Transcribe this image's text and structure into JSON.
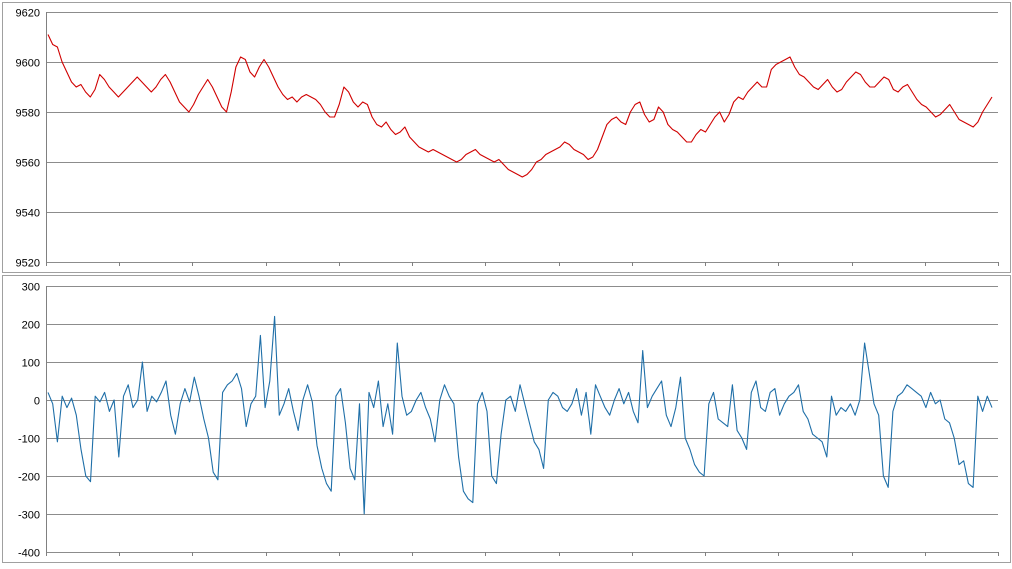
{
  "chart_data": [
    {
      "type": "line",
      "ylim": [
        9520,
        9620
      ],
      "yticks": [
        9520,
        9540,
        9560,
        9580,
        9600,
        9620
      ],
      "x_points": 200,
      "grid": true,
      "series": [
        {
          "color": "#d00000",
          "values": [
            9611,
            9607,
            9606,
            9600,
            9596,
            9592,
            9590,
            9591,
            9588,
            9586,
            9589,
            9595,
            9593,
            9590,
            9588,
            9586,
            9588,
            9590,
            9592,
            9594,
            9592,
            9590,
            9588,
            9590,
            9593,
            9595,
            9592,
            9588,
            9584,
            9582,
            9580,
            9583,
            9587,
            9590,
            9593,
            9590,
            9586,
            9582,
            9580,
            9588,
            9598,
            9602,
            9601,
            9596,
            9594,
            9598,
            9601,
            9598,
            9594,
            9590,
            9587,
            9585,
            9586,
            9584,
            9586,
            9587,
            9586,
            9585,
            9583,
            9580,
            9578,
            9578,
            9583,
            9590,
            9588,
            9584,
            9582,
            9584,
            9583,
            9578,
            9575,
            9574,
            9576,
            9573,
            9571,
            9572,
            9574,
            9570,
            9568,
            9566,
            9565,
            9564,
            9565,
            9564,
            9563,
            9562,
            9561,
            9560,
            9561,
            9563,
            9564,
            9565,
            9563,
            9562,
            9561,
            9560,
            9561,
            9559,
            9557,
            9556,
            9555,
            9554,
            9555,
            9557,
            9560,
            9561,
            9563,
            9564,
            9565,
            9566,
            9568,
            9567,
            9565,
            9564,
            9563,
            9561,
            9562,
            9565,
            9570,
            9575,
            9577,
            9578,
            9576,
            9575,
            9580,
            9583,
            9584,
            9579,
            9576,
            9577,
            9582,
            9580,
            9575,
            9573,
            9572,
            9570,
            9568,
            9568,
            9571,
            9573,
            9572,
            9575,
            9578,
            9580,
            9576,
            9579,
            9584,
            9586,
            9585,
            9588,
            9590,
            9592,
            9590,
            9590,
            9597,
            9599,
            9600,
            9601,
            9602,
            9598,
            9595,
            9594,
            9592,
            9590,
            9589,
            9591,
            9593,
            9590,
            9588,
            9589,
            9592,
            9594,
            9596,
            9595,
            9592,
            9590,
            9590,
            9592,
            9594,
            9593,
            9589,
            9588,
            9590,
            9591,
            9588,
            9585,
            9583,
            9582,
            9580,
            9578,
            9579,
            9581,
            9583,
            9580,
            9577,
            9576,
            9575,
            9574,
            9576,
            9580,
            9583,
            9586
          ]
        }
      ]
    },
    {
      "type": "line",
      "ylim": [
        -400,
        300
      ],
      "yticks": [
        -400,
        -300,
        -200,
        -100,
        0,
        100,
        200,
        300
      ],
      "x_points": 200,
      "grid": true,
      "series": [
        {
          "color": "#1f6fa8",
          "values": [
            20,
            -10,
            -110,
            10,
            -20,
            5,
            -40,
            -130,
            -200,
            -215,
            10,
            -5,
            20,
            -30,
            0,
            -150,
            10,
            40,
            -20,
            0,
            100,
            -30,
            10,
            -5,
            20,
            50,
            -40,
            -90,
            -10,
            30,
            -5,
            60,
            10,
            -50,
            -100,
            -190,
            -210,
            20,
            40,
            50,
            70,
            30,
            -70,
            -10,
            10,
            170,
            -20,
            50,
            220,
            -40,
            -10,
            30,
            -30,
            -80,
            0,
            40,
            -5,
            -120,
            -180,
            -220,
            -240,
            10,
            30,
            -60,
            -180,
            -210,
            -10,
            -300,
            20,
            -20,
            50,
            -70,
            -10,
            -90,
            150,
            10,
            -40,
            -30,
            0,
            20,
            -20,
            -50,
            -110,
            0,
            40,
            10,
            -10,
            -150,
            -240,
            -260,
            -270,
            -10,
            20,
            -30,
            -200,
            -220,
            -90,
            0,
            10,
            -30,
            40,
            -10,
            -60,
            -110,
            -130,
            -180,
            0,
            20,
            10,
            -20,
            -30,
            -10,
            30,
            -40,
            20,
            -90,
            40,
            10,
            -20,
            -40,
            0,
            30,
            -10,
            20,
            -30,
            -60,
            130,
            -20,
            10,
            30,
            50,
            -40,
            -70,
            -20,
            60,
            -100,
            -130,
            -170,
            -190,
            -200,
            -10,
            20,
            -50,
            -60,
            -70,
            40,
            -80,
            -100,
            -130,
            20,
            50,
            -20,
            -30,
            20,
            30,
            -40,
            -10,
            10,
            20,
            40,
            -30,
            -50,
            -90,
            -100,
            -110,
            -150,
            10,
            -40,
            -20,
            -30,
            -10,
            -40,
            0,
            150,
            70,
            -10,
            -40,
            -200,
            -230,
            -30,
            10,
            20,
            40,
            30,
            20,
            10,
            -20,
            20,
            -10,
            0,
            -50,
            -60,
            -100,
            -170,
            -160,
            -220,
            -230,
            10,
            -30,
            10,
            -20
          ]
        }
      ]
    }
  ]
}
